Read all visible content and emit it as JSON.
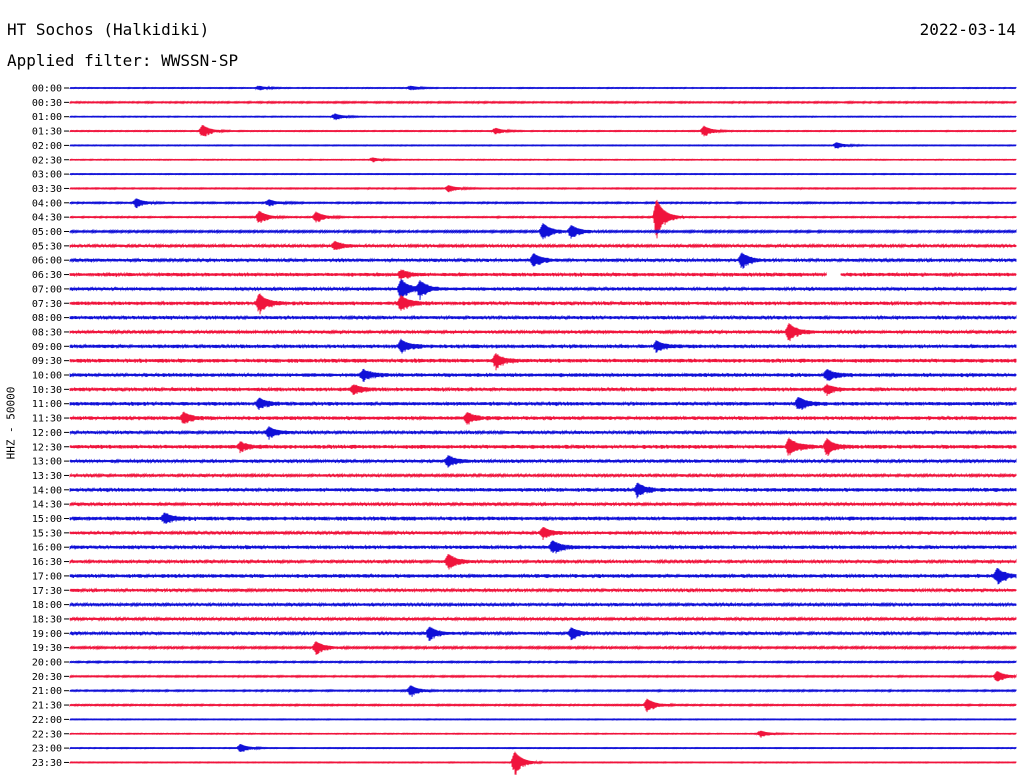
{
  "header": {
    "station": "HT Sochos (Halkidiki)",
    "filter": "Applied filter: WWSSN-SP",
    "date": "2022-03-14"
  },
  "chart_data": {
    "type": "line",
    "title": "HT Sochos (Halkidiki)",
    "subtitle": "Applied filter: WWSSN-SP",
    "date": "2022-03-14",
    "ylabel": "HHZ - 50000",
    "xlabel": "",
    "colors": {
      "even_rows": "#1010d8",
      "odd_rows": "#f0143c"
    },
    "grid": false,
    "legend": "none",
    "rows": [
      "00:00",
      "00:30",
      "01:00",
      "01:30",
      "02:00",
      "02:30",
      "03:00",
      "03:30",
      "04:00",
      "04:30",
      "05:00",
      "05:30",
      "06:00",
      "06:30",
      "07:00",
      "07:30",
      "08:00",
      "08:30",
      "09:00",
      "09:30",
      "10:00",
      "10:30",
      "11:00",
      "11:30",
      "12:00",
      "12:30",
      "13:00",
      "13:30",
      "14:00",
      "14:30",
      "15:00",
      "15:30",
      "16:00",
      "16:30",
      "17:00",
      "17:30",
      "18:00",
      "18:30",
      "19:00",
      "19:30",
      "20:00",
      "20:30",
      "21:00",
      "21:30",
      "22:00",
      "22:30",
      "23:00",
      "23:30"
    ],
    "noise_level": [
      0.3,
      0.5,
      0.3,
      0.35,
      0.3,
      0.3,
      0.3,
      0.4,
      0.5,
      0.45,
      0.7,
      0.9,
      1.0,
      1.2,
      1.1,
      1.2,
      1.1,
      1.0,
      1.2,
      1.3,
      1.2,
      1.2,
      1.2,
      1.2,
      1.0,
      1.3,
      1.0,
      0.9,
      1.2,
      1.0,
      1.3,
      1.0,
      1.2,
      1.0,
      1.2,
      1.0,
      1.0,
      0.9,
      1.0,
      0.7,
      0.5,
      0.5,
      0.5,
      0.5,
      0.3,
      0.3,
      0.3,
      0.3
    ],
    "events": [
      {
        "row": "00:00",
        "t": 0.2,
        "amp": 2
      },
      {
        "row": "00:00",
        "t": 0.36,
        "amp": 2
      },
      {
        "row": "01:00",
        "t": 0.28,
        "amp": 3
      },
      {
        "row": "01:30",
        "t": 0.14,
        "amp": 6
      },
      {
        "row": "01:30",
        "t": 0.45,
        "amp": 3
      },
      {
        "row": "01:30",
        "t": 0.67,
        "amp": 5
      },
      {
        "row": "02:00",
        "t": 0.81,
        "amp": 3
      },
      {
        "row": "02:30",
        "t": 0.32,
        "amp": 2
      },
      {
        "row": "03:30",
        "t": 0.4,
        "amp": 3
      },
      {
        "row": "04:00",
        "t": 0.07,
        "amp": 4
      },
      {
        "row": "04:00",
        "t": 0.21,
        "amp": 3
      },
      {
        "row": "04:30",
        "t": 0.2,
        "amp": 6
      },
      {
        "row": "04:30",
        "t": 0.26,
        "amp": 5
      },
      {
        "row": "04:30",
        "t": 0.62,
        "amp": 18
      },
      {
        "row": "05:00",
        "t": 0.5,
        "amp": 8
      },
      {
        "row": "05:00",
        "t": 0.53,
        "amp": 6
      },
      {
        "row": "05:30",
        "t": 0.28,
        "amp": 4
      },
      {
        "row": "06:00",
        "t": 0.49,
        "amp": 6
      },
      {
        "row": "06:00",
        "t": 0.71,
        "amp": 7
      },
      {
        "row": "06:30",
        "t": 0.35,
        "amp": 4
      },
      {
        "row": "07:00",
        "t": 0.35,
        "amp": 9
      },
      {
        "row": "07:00",
        "t": 0.37,
        "amp": 7
      },
      {
        "row": "07:30",
        "t": 0.2,
        "amp": 9
      },
      {
        "row": "07:30",
        "t": 0.35,
        "amp": 7
      },
      {
        "row": "08:30",
        "t": 0.76,
        "amp": 8
      },
      {
        "row": "09:00",
        "t": 0.35,
        "amp": 6
      },
      {
        "row": "09:00",
        "t": 0.62,
        "amp": 5
      },
      {
        "row": "09:30",
        "t": 0.45,
        "amp": 6
      },
      {
        "row": "10:00",
        "t": 0.31,
        "amp": 5
      },
      {
        "row": "10:00",
        "t": 0.8,
        "amp": 5
      },
      {
        "row": "10:30",
        "t": 0.3,
        "amp": 4
      },
      {
        "row": "10:30",
        "t": 0.8,
        "amp": 4
      },
      {
        "row": "11:00",
        "t": 0.2,
        "amp": 5
      },
      {
        "row": "11:00",
        "t": 0.77,
        "amp": 6
      },
      {
        "row": "11:30",
        "t": 0.12,
        "amp": 5
      },
      {
        "row": "11:30",
        "t": 0.42,
        "amp": 5
      },
      {
        "row": "12:00",
        "t": 0.21,
        "amp": 5
      },
      {
        "row": "12:30",
        "t": 0.18,
        "amp": 4
      },
      {
        "row": "12:30",
        "t": 0.76,
        "amp": 8
      },
      {
        "row": "12:30",
        "t": 0.8,
        "amp": 7
      },
      {
        "row": "13:00",
        "t": 0.4,
        "amp": 5
      },
      {
        "row": "14:00",
        "t": 0.6,
        "amp": 6
      },
      {
        "row": "15:00",
        "t": 0.1,
        "amp": 5
      },
      {
        "row": "15:30",
        "t": 0.5,
        "amp": 5
      },
      {
        "row": "16:00",
        "t": 0.51,
        "amp": 6
      },
      {
        "row": "16:30",
        "t": 0.4,
        "amp": 7
      },
      {
        "row": "17:00",
        "t": 0.98,
        "amp": 7
      },
      {
        "row": "19:00",
        "t": 0.38,
        "amp": 6
      },
      {
        "row": "19:00",
        "t": 0.53,
        "amp": 5
      },
      {
        "row": "19:30",
        "t": 0.26,
        "amp": 6
      },
      {
        "row": "20:30",
        "t": 0.98,
        "amp": 5
      },
      {
        "row": "21:00",
        "t": 0.36,
        "amp": 5
      },
      {
        "row": "21:30",
        "t": 0.61,
        "amp": 6
      },
      {
        "row": "22:30",
        "t": 0.73,
        "amp": 3
      },
      {
        "row": "23:00",
        "t": 0.18,
        "amp": 4
      },
      {
        "row": "23:30",
        "t": 0.47,
        "amp": 11
      }
    ],
    "data_gap": {
      "row": "06:30",
      "t_start": 0.8,
      "t_end": 0.815
    }
  }
}
